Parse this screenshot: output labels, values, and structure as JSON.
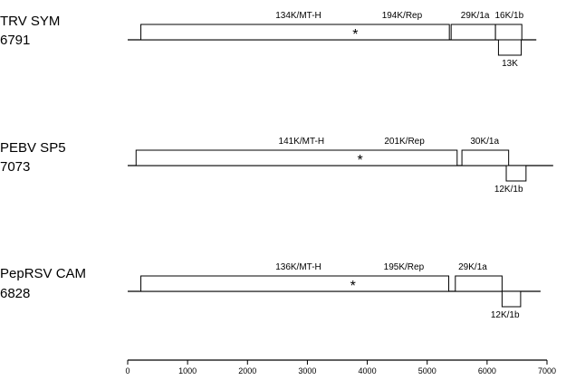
{
  "colors": {
    "line": "#000000",
    "box_fill": "#ffffff",
    "text": "#000000"
  },
  "scale": {
    "ticks": [
      0,
      1000,
      2000,
      3000,
      4000,
      5000,
      6000,
      7000
    ],
    "tick_labels": [
      "0",
      "1000",
      "2000",
      "3000",
      "4000",
      "5000",
      "6000",
      "7000"
    ]
  },
  "genomes": [
    {
      "name": "TRV SYM",
      "length_label": "6791",
      "length_nt": 6791,
      "marker": "*",
      "marker_nt": 3800,
      "orfs": [
        {
          "id": "replicase",
          "start": 220,
          "end": 5370,
          "strand": "top",
          "labels": [
            {
              "text": "134K/MT-H",
              "at_nt": 2850
            },
            {
              "text": "194K/Rep",
              "at_nt": 4580
            }
          ]
        },
        {
          "id": "29k",
          "start": 5400,
          "end": 6140,
          "strand": "top",
          "labels": [
            {
              "text": "29K/1a",
              "at_nt": 5800
            }
          ]
        },
        {
          "id": "16k",
          "start": 6140,
          "end": 6580,
          "strand": "top",
          "labels": [
            {
              "text": "16K/1b",
              "at_nt": 6370
            }
          ]
        },
        {
          "id": "13k",
          "start": 6190,
          "end": 6570,
          "strand": "bottom",
          "labels": [
            {
              "text": "13K",
              "at_nt": 6380
            }
          ]
        }
      ]
    },
    {
      "name": "PEBV SP5",
      "length_label": "7073",
      "length_nt": 7073,
      "marker": "*",
      "marker_nt": 3880,
      "orfs": [
        {
          "id": "replicase",
          "start": 140,
          "end": 5500,
          "strand": "top",
          "labels": [
            {
              "text": "141K/MT-H",
              "at_nt": 2900
            },
            {
              "text": "201K/Rep",
              "at_nt": 4620
            }
          ]
        },
        {
          "id": "30k",
          "start": 5580,
          "end": 6360,
          "strand": "top",
          "labels": [
            {
              "text": "30K/1a",
              "at_nt": 5960
            }
          ]
        },
        {
          "id": "12k",
          "start": 6320,
          "end": 6650,
          "strand": "bottom",
          "labels": [
            {
              "text": "12K/1b",
              "at_nt": 6360
            }
          ]
        }
      ]
    },
    {
      "name": "PepRSV CAM",
      "length_label": "6828",
      "length_nt": 6828,
      "marker": "*",
      "marker_nt": 3760,
      "orfs": [
        {
          "id": "replicase",
          "start": 220,
          "end": 5360,
          "strand": "top",
          "labels": [
            {
              "text": "136K/MT-H",
              "at_nt": 2850
            },
            {
              "text": "195K/Rep",
              "at_nt": 4610
            }
          ]
        },
        {
          "id": "29k",
          "start": 5470,
          "end": 6250,
          "strand": "top",
          "labels": [
            {
              "text": "29K/1a",
              "at_nt": 5760
            }
          ]
        },
        {
          "id": "12k",
          "start": 6250,
          "end": 6560,
          "strand": "bottom",
          "labels": [
            {
              "text": "12K/1b",
              "at_nt": 6300
            }
          ]
        }
      ]
    }
  ]
}
